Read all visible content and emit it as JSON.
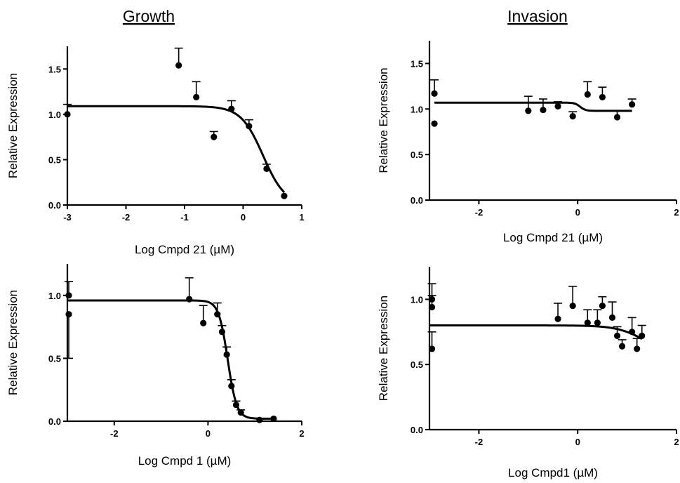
{
  "headings": {
    "growth": "Growth",
    "invasion": "Invasion"
  },
  "chart_data": [
    {
      "id": "growth-21",
      "type": "scatter",
      "xlabel": "Log Cmpd 21 (µM)",
      "ylabel": "Relative Expression",
      "xlim": [
        -3,
        1
      ],
      "ylim": [
        0,
        1.75
      ],
      "xticks": [
        -3,
        -2,
        -1,
        0,
        1
      ],
      "yticks": [
        0,
        0.5,
        1.0,
        1.5
      ],
      "xtick_labels": [
        "-3",
        "-2",
        "-1",
        "0",
        "1"
      ],
      "ytick_labels": [
        "0.0",
        "0.5",
        "1.0",
        "1.5"
      ],
      "points": [
        {
          "x": -3.0,
          "y": 1.0,
          "err": 0.11
        },
        {
          "x": -1.1,
          "y": 1.54,
          "err": 0.19
        },
        {
          "x": -0.8,
          "y": 1.19,
          "err": 0.17
        },
        {
          "x": -0.5,
          "y": 0.75,
          "err": 0.06
        },
        {
          "x": -0.2,
          "y": 1.06,
          "err": 0.09
        },
        {
          "x": 0.1,
          "y": 0.87,
          "err": 0.07
        },
        {
          "x": 0.4,
          "y": 0.4,
          "err": 0.05
        },
        {
          "x": 0.7,
          "y": 0.1,
          "err": 0.0
        }
      ],
      "fit": {
        "model": "sigmoid",
        "top": 1.09,
        "bottom": 0.0,
        "logIC50": 0.34,
        "hill": -2.3,
        "xrange": [
          -3.0,
          0.7
        ]
      }
    },
    {
      "id": "invasion-21",
      "type": "scatter",
      "xlabel": "Log Cmpd 21 (µM)",
      "ylabel": "Relative Expression",
      "xlim": [
        -3,
        2
      ],
      "ylim": [
        0,
        1.75
      ],
      "xticks": [
        -2,
        0,
        2
      ],
      "yticks": [
        0,
        0.5,
        1.0,
        1.5
      ],
      "xtick_labels": [
        "-2",
        "0",
        "2"
      ],
      "ytick_labels": [
        "0.0",
        "0.5",
        "1.0",
        "1.5"
      ],
      "points": [
        {
          "x": -2.9,
          "y": 1.17,
          "err": 0.15
        },
        {
          "x": -2.9,
          "y": 0.84,
          "err": 0.0
        },
        {
          "x": -1.0,
          "y": 0.98,
          "err": 0.16
        },
        {
          "x": -0.7,
          "y": 0.99,
          "err": 0.12
        },
        {
          "x": -0.4,
          "y": 1.03,
          "err": 0.05
        },
        {
          "x": -0.1,
          "y": 0.92,
          "err": 0.05
        },
        {
          "x": 0.2,
          "y": 1.16,
          "err": 0.14
        },
        {
          "x": 0.5,
          "y": 1.13,
          "err": 0.11
        },
        {
          "x": 0.8,
          "y": 0.91,
          "err": 0.07
        },
        {
          "x": 1.1,
          "y": 1.05,
          "err": 0.06
        }
      ],
      "fit": {
        "model": "sigmoid",
        "top": 0.98,
        "bottom": 1.07,
        "logIC50": 0.05,
        "hill": 8,
        "xrange": [
          -2.9,
          1.1
        ]
      }
    },
    {
      "id": "growth-1",
      "type": "scatter",
      "xlabel": "Log Cmpd 1 (µM)",
      "ylabel": "Relative Expression",
      "xlim": [
        -3,
        2
      ],
      "ylim": [
        0,
        1.25
      ],
      "xticks": [
        -2,
        0,
        2
      ],
      "yticks": [
        0,
        0.5,
        1.0
      ],
      "xtick_labels": [
        "-2",
        "0",
        "2"
      ],
      "ytick_labels": [
        "0.0",
        "0.5",
        "1.0"
      ],
      "points": [
        {
          "x": -2.97,
          "y": 1.0,
          "err": 0.11,
          "lower": false
        },
        {
          "x": -2.97,
          "y": 0.85,
          "err": 0.35,
          "lower": true
        },
        {
          "x": -0.4,
          "y": 0.97,
          "err": 0.17
        },
        {
          "x": -0.1,
          "y": 0.78,
          "err": 0.14
        },
        {
          "x": 0.2,
          "y": 0.85,
          "err": 0.09
        },
        {
          "x": 0.3,
          "y": 0.71,
          "err": 0.05
        },
        {
          "x": 0.4,
          "y": 0.53,
          "err": 0.06
        },
        {
          "x": 0.5,
          "y": 0.28,
          "err": 0.05
        },
        {
          "x": 0.6,
          "y": 0.13,
          "err": 0.03
        },
        {
          "x": 0.7,
          "y": 0.07,
          "err": 0.02
        },
        {
          "x": 1.1,
          "y": 0.01,
          "err": 0.0
        },
        {
          "x": 1.4,
          "y": 0.02,
          "err": 0.0
        }
      ],
      "fit": {
        "model": "sigmoid",
        "top": 0.96,
        "bottom": 0.02,
        "logIC50": 0.42,
        "hill": -4.5,
        "xrange": [
          -3.0,
          1.4
        ]
      }
    },
    {
      "id": "invasion-1",
      "type": "scatter",
      "xlabel": "Log Cmpd1 (µM)",
      "ylabel": "Relative Expression",
      "xlim": [
        -3,
        2
      ],
      "ylim": [
        0,
        1.25
      ],
      "xticks": [
        -2,
        0,
        2
      ],
      "yticks": [
        0,
        0.5,
        1.0
      ],
      "xtick_labels": [
        "-2",
        "0",
        "2"
      ],
      "ytick_labels": [
        "0.0",
        "0.5",
        "1.0"
      ],
      "points": [
        {
          "x": -2.95,
          "y": 1.0,
          "err": 0.12
        },
        {
          "x": -2.95,
          "y": 0.94,
          "err": 0.09
        },
        {
          "x": -2.95,
          "y": 0.62,
          "err": 0.13
        },
        {
          "x": -0.4,
          "y": 0.85,
          "err": 0.12
        },
        {
          "x": -0.1,
          "y": 0.95,
          "err": 0.15
        },
        {
          "x": 0.2,
          "y": 0.82,
          "err": 0.1
        },
        {
          "x": 0.4,
          "y": 0.82,
          "err": 0.1
        },
        {
          "x": 0.5,
          "y": 0.95,
          "err": 0.07
        },
        {
          "x": 0.7,
          "y": 0.86,
          "err": 0.12
        },
        {
          "x": 0.8,
          "y": 0.72,
          "err": 0.07
        },
        {
          "x": 0.9,
          "y": 0.64,
          "err": 0.05
        },
        {
          "x": 1.1,
          "y": 0.75,
          "err": 0.11
        },
        {
          "x": 1.2,
          "y": 0.62,
          "err": 0.08
        },
        {
          "x": 1.3,
          "y": 0.72,
          "err": 0.08
        }
      ],
      "fit": {
        "model": "sigmoid",
        "top": 0.8,
        "bottom": 0.55,
        "logIC50": 1.4,
        "hill": -1.5,
        "xrange": [
          -3.0,
          1.3
        ]
      }
    }
  ]
}
